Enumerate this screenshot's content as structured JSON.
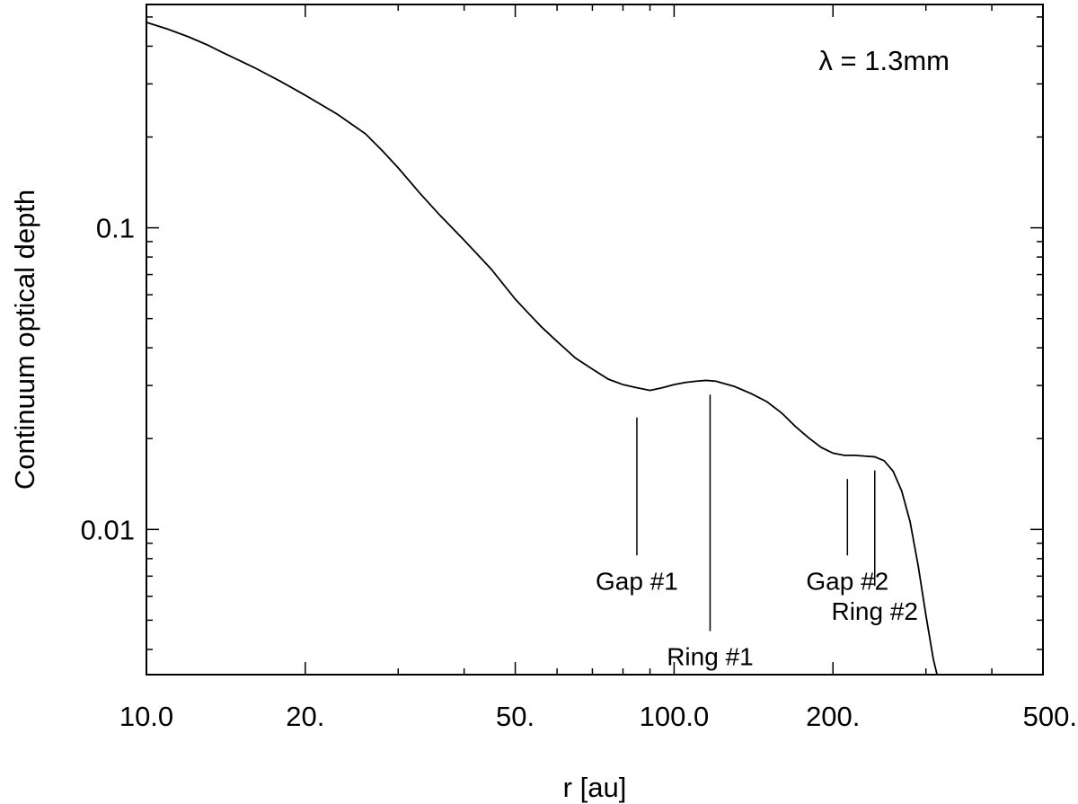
{
  "chart_data": {
    "type": "line",
    "title": "",
    "xlabel": "r [au]",
    "ylabel": "Continuum optical depth",
    "xscale": "log",
    "yscale": "log",
    "xlim": [
      10,
      500
    ],
    "ylim": [
      0.0033,
      0.55
    ],
    "grid": false,
    "x_ticks": [
      {
        "value": 10,
        "label": "10.0"
      },
      {
        "value": 20,
        "label": "20."
      },
      {
        "value": 50,
        "label": "50."
      },
      {
        "value": 100,
        "label": "100.0"
      },
      {
        "value": 200,
        "label": "200."
      },
      {
        "value": 500,
        "label": "500."
      }
    ],
    "y_ticks": [
      {
        "value": 0.1,
        "label": "0.1"
      },
      {
        "value": 0.01,
        "label": "0.01"
      }
    ],
    "legend_text": "λ = 1.3mm",
    "legend_placement": "top-right",
    "series": [
      {
        "x": [
          10,
          11,
          12,
          13,
          14,
          16,
          18,
          20,
          23,
          26,
          28,
          30,
          33,
          36,
          40,
          45,
          50,
          53,
          56,
          60,
          65,
          70,
          75,
          80,
          85,
          90,
          95,
          100,
          105,
          110,
          115,
          120,
          130,
          140,
          150,
          160,
          170,
          180,
          190,
          200,
          210,
          220,
          230,
          240,
          250,
          260,
          270,
          280,
          290,
          300,
          310,
          315
        ],
        "values": [
          0.48,
          0.455,
          0.43,
          0.405,
          0.38,
          0.34,
          0.305,
          0.275,
          0.238,
          0.205,
          0.18,
          0.158,
          0.13,
          0.11,
          0.091,
          0.073,
          0.058,
          0.052,
          0.047,
          0.042,
          0.037,
          0.034,
          0.0315,
          0.0302,
          0.0295,
          0.0289,
          0.0295,
          0.0302,
          0.0307,
          0.031,
          0.0312,
          0.031,
          0.0298,
          0.0282,
          0.0265,
          0.0243,
          0.0219,
          0.0201,
          0.0187,
          0.0179,
          0.0176,
          0.0176,
          0.0175,
          0.0174,
          0.0169,
          0.0156,
          0.0134,
          0.0106,
          0.0076,
          0.0052,
          0.0037,
          0.0033
        ]
      }
    ],
    "annotations": [
      {
        "text": "Gap #1",
        "x": 85,
        "line_y": [
          0.0082,
          0.0235
        ]
      },
      {
        "text": "Ring #1",
        "x": 117,
        "line_y": [
          0.0046,
          0.028
        ]
      },
      {
        "text": "Gap #2",
        "x": 213,
        "line_y": [
          0.0082,
          0.0147
        ]
      },
      {
        "text": "Ring #2",
        "x": 240,
        "line_y": [
          0.0065,
          0.0157
        ]
      }
    ]
  }
}
